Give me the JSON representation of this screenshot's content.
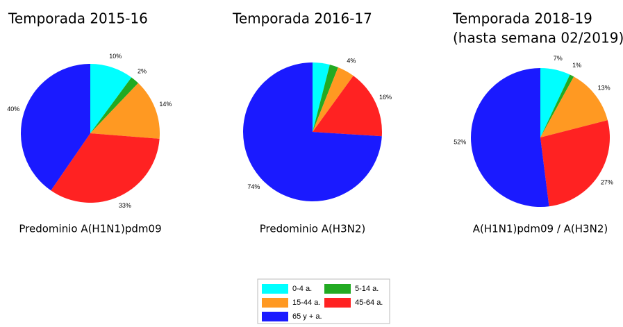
{
  "chart_data": [
    {
      "type": "pie",
      "title": "Temporada 2015-16",
      "caption": "Predominio A(H1N1)pdm09",
      "categories": [
        "0-4 a.",
        "5-14 a.",
        "15-44 a.",
        "45-64 a.",
        "65 y + a."
      ],
      "colors": [
        "#00ffff",
        "#22aa22",
        "#ff9922",
        "#ff2222",
        "#1a1aff"
      ],
      "values": [
        10,
        2,
        14,
        33,
        40
      ],
      "value_labels": [
        "10%",
        "2%",
        "14%",
        "33%",
        "40%"
      ]
    },
    {
      "type": "pie",
      "title": "Temporada 2016-17",
      "caption": "Predominio A(H3N2)",
      "categories": [
        "0-4 a.",
        "5-14 a.",
        "15-44 a.",
        "45-64 a.",
        "65 y + a."
      ],
      "colors": [
        "#00ffff",
        "#22aa22",
        "#ff9922",
        "#ff2222",
        "#1a1aff"
      ],
      "values": [
        4,
        2,
        4,
        16,
        74
      ],
      "value_labels": [
        null,
        null,
        "4%",
        "16%",
        "74%"
      ]
    },
    {
      "type": "pie",
      "title": "Temporada 2018-19",
      "subtitle": "(hasta semana 02/2019)",
      "caption": "A(H1N1)pdm09 / A(H3N2)",
      "categories": [
        "0-4 a.",
        "5-14 a.",
        "15-44 a.",
        "45-64 a.",
        "65 y + a."
      ],
      "colors": [
        "#00ffff",
        "#22aa22",
        "#ff9922",
        "#ff2222",
        "#1a1aff"
      ],
      "values": [
        7,
        1,
        13,
        27,
        52
      ],
      "value_labels": [
        "7%",
        "1%",
        "13%",
        "27%",
        "52%"
      ]
    }
  ]
}
